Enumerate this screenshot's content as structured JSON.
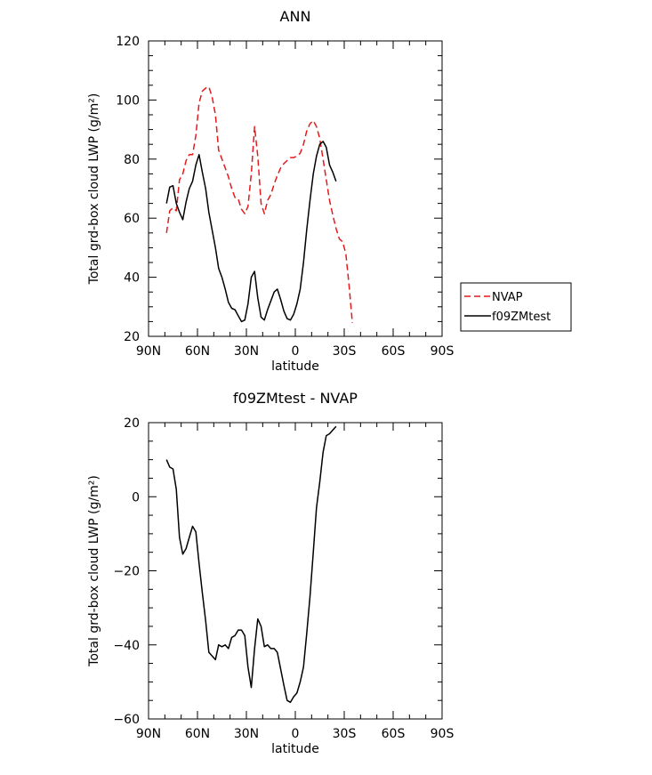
{
  "chart_data": [
    {
      "type": "line",
      "title": "ANN",
      "xlabel": "latitude",
      "ylabel": "Total grd-box cloud LWP (g/m²)",
      "xlim": [
        90,
        -90
      ],
      "ylim": [
        20,
        120
      ],
      "x_ticks": [
        90,
        60,
        30,
        0,
        -30,
        -60,
        -90
      ],
      "x_tick_labels": [
        "90N",
        "60N",
        "30N",
        "0",
        "30S",
        "60S",
        "90S"
      ],
      "y_ticks": [
        20,
        40,
        60,
        80,
        100,
        120
      ],
      "y_tick_labels": [
        "20",
        "40",
        "60",
        "80",
        "100",
        "120"
      ],
      "legend_position": "right",
      "series": [
        {
          "name": "NVAP",
          "color": "#e31a1c",
          "dash": "dashed",
          "points": [
            [
              79,
              55
            ],
            [
              77,
              62.5
            ],
            [
              75,
              63.5
            ],
            [
              73,
              62.5
            ],
            [
              71,
              73
            ],
            [
              69,
              75
            ],
            [
              67,
              79.5
            ],
            [
              65,
              81.5
            ],
            [
              63,
              81.5
            ],
            [
              61,
              88
            ],
            [
              59,
              99
            ],
            [
              57,
              103
            ],
            [
              55,
              104
            ],
            [
              53,
              104.5
            ],
            [
              51,
              101
            ],
            [
              49,
              95
            ],
            [
              47,
              83
            ],
            [
              45,
              80
            ],
            [
              43,
              77
            ],
            [
              41,
              74
            ],
            [
              39,
              70
            ],
            [
              37,
              67
            ],
            [
              35,
              66.5
            ],
            [
              33,
              63
            ],
            [
              31,
              61.5
            ],
            [
              29,
              64
            ],
            [
              27,
              75
            ],
            [
              25,
              91
            ],
            [
              23,
              81
            ],
            [
              21,
              65
            ],
            [
              19,
              61.5
            ],
            [
              17,
              66
            ],
            [
              15,
              68
            ],
            [
              13,
              71.5
            ],
            [
              11,
              74.5
            ],
            [
              9,
              77
            ],
            [
              7,
              78.5
            ],
            [
              5,
              79.5
            ],
            [
              3,
              80.5
            ],
            [
              1,
              80.5
            ],
            [
              -1,
              81
            ],
            [
              -3,
              82
            ],
            [
              -5,
              85
            ],
            [
              -7,
              89.5
            ],
            [
              -9,
              92
            ],
            [
              -11,
              93
            ],
            [
              -13,
              91
            ],
            [
              -15,
              87
            ],
            [
              -17,
              80
            ],
            [
              -19,
              73
            ],
            [
              -21,
              66
            ],
            [
              -23,
              61
            ],
            [
              -25,
              56.5
            ],
            [
              -27,
              53
            ],
            [
              -29,
              52
            ],
            [
              -31,
              48
            ],
            [
              -33,
              37
            ],
            [
              -35,
              24.5
            ]
          ]
        },
        {
          "name": "f09ZMtest",
          "color": "#000000",
          "dash": "solid",
          "points": [
            [
              79,
              65
            ],
            [
              77,
              70.5
            ],
            [
              75,
              71
            ],
            [
              73,
              65
            ],
            [
              71,
              62
            ],
            [
              69,
              59.5
            ],
            [
              67,
              65.5
            ],
            [
              65,
              70
            ],
            [
              63,
              72.5
            ],
            [
              61,
              78
            ],
            [
              59,
              81.5
            ],
            [
              57,
              75.5
            ],
            [
              55,
              70
            ],
            [
              53,
              62
            ],
            [
              51,
              56
            ],
            [
              49,
              50
            ],
            [
              47,
              43
            ],
            [
              45,
              40
            ],
            [
              43,
              36
            ],
            [
              41,
              31.5
            ],
            [
              39,
              29.5
            ],
            [
              37,
              29
            ],
            [
              35,
              27
            ],
            [
              33,
              25
            ],
            [
              31,
              25.5
            ],
            [
              29,
              31
            ],
            [
              27,
              40
            ],
            [
              25,
              42
            ],
            [
              23,
              33
            ],
            [
              21,
              26.5
            ],
            [
              19,
              25.5
            ],
            [
              17,
              29
            ],
            [
              15,
              32
            ],
            [
              13,
              35
            ],
            [
              11,
              36
            ],
            [
              9,
              32.5
            ],
            [
              7,
              28.5
            ],
            [
              5,
              26
            ],
            [
              3,
              25.5
            ],
            [
              1,
              27.5
            ],
            [
              -1,
              31
            ],
            [
              -3,
              36
            ],
            [
              -5,
              45
            ],
            [
              -7,
              56
            ],
            [
              -9,
              66
            ],
            [
              -11,
              75
            ],
            [
              -13,
              81
            ],
            [
              -15,
              85
            ],
            [
              -17,
              86
            ],
            [
              -19,
              84
            ],
            [
              -21,
              78
            ],
            [
              -23,
              75.5
            ],
            [
              -25,
              72.5
            ]
          ]
        }
      ]
    },
    {
      "type": "line",
      "title": "f09ZMtest - NVAP",
      "xlabel": "latitude",
      "ylabel": "Total grd-box cloud LWP (g/m²)",
      "xlim": [
        90,
        -90
      ],
      "ylim": [
        -60,
        20
      ],
      "x_ticks": [
        90,
        60,
        30,
        0,
        -30,
        -60,
        -90
      ],
      "x_tick_labels": [
        "90N",
        "60N",
        "30N",
        "0",
        "30S",
        "60S",
        "90S"
      ],
      "y_ticks": [
        -60,
        -40,
        -20,
        0,
        20
      ],
      "y_tick_labels": [
        "−60",
        "−40",
        "−20",
        "0",
        "20"
      ],
      "series": [
        {
          "color": "#000000",
          "dash": "solid",
          "points": [
            [
              79,
              10
            ],
            [
              77,
              8
            ],
            [
              75,
              7.5
            ],
            [
              73,
              2
            ],
            [
              71,
              -11
            ],
            [
              69,
              -15.5
            ],
            [
              67,
              -14
            ],
            [
              65,
              -11
            ],
            [
              63,
              -8
            ],
            [
              61,
              -9.5
            ],
            [
              59,
              -18
            ],
            [
              57,
              -26
            ],
            [
              55,
              -33.5
            ],
            [
              53,
              -42
            ],
            [
              51,
              -43
            ],
            [
              49,
              -44
            ],
            [
              47,
              -40
            ],
            [
              45,
              -40.5
            ],
            [
              43,
              -40
            ],
            [
              41,
              -41
            ],
            [
              39,
              -38
            ],
            [
              37,
              -37.5
            ],
            [
              35,
              -36
            ],
            [
              33,
              -36
            ],
            [
              31,
              -37.5
            ],
            [
              29,
              -46
            ],
            [
              27,
              -51.5
            ],
            [
              25,
              -41
            ],
            [
              23,
              -33
            ],
            [
              21,
              -35
            ],
            [
              19,
              -40.5
            ],
            [
              17,
              -40
            ],
            [
              15,
              -41
            ],
            [
              13,
              -41
            ],
            [
              11,
              -42
            ],
            [
              9,
              -46.5
            ],
            [
              7,
              -51
            ],
            [
              5,
              -55
            ],
            [
              3,
              -55.5
            ],
            [
              1,
              -54
            ],
            [
              -1,
              -53
            ],
            [
              -3,
              -50
            ],
            [
              -5,
              -46
            ],
            [
              -7,
              -37
            ],
            [
              -9,
              -27
            ],
            [
              -11,
              -15
            ],
            [
              -13,
              -3
            ],
            [
              -15,
              4
            ],
            [
              -17,
              12
            ],
            [
              -19,
              16.5
            ],
            [
              -21,
              17
            ],
            [
              -23,
              18
            ],
            [
              -25,
              19
            ]
          ]
        }
      ]
    }
  ]
}
